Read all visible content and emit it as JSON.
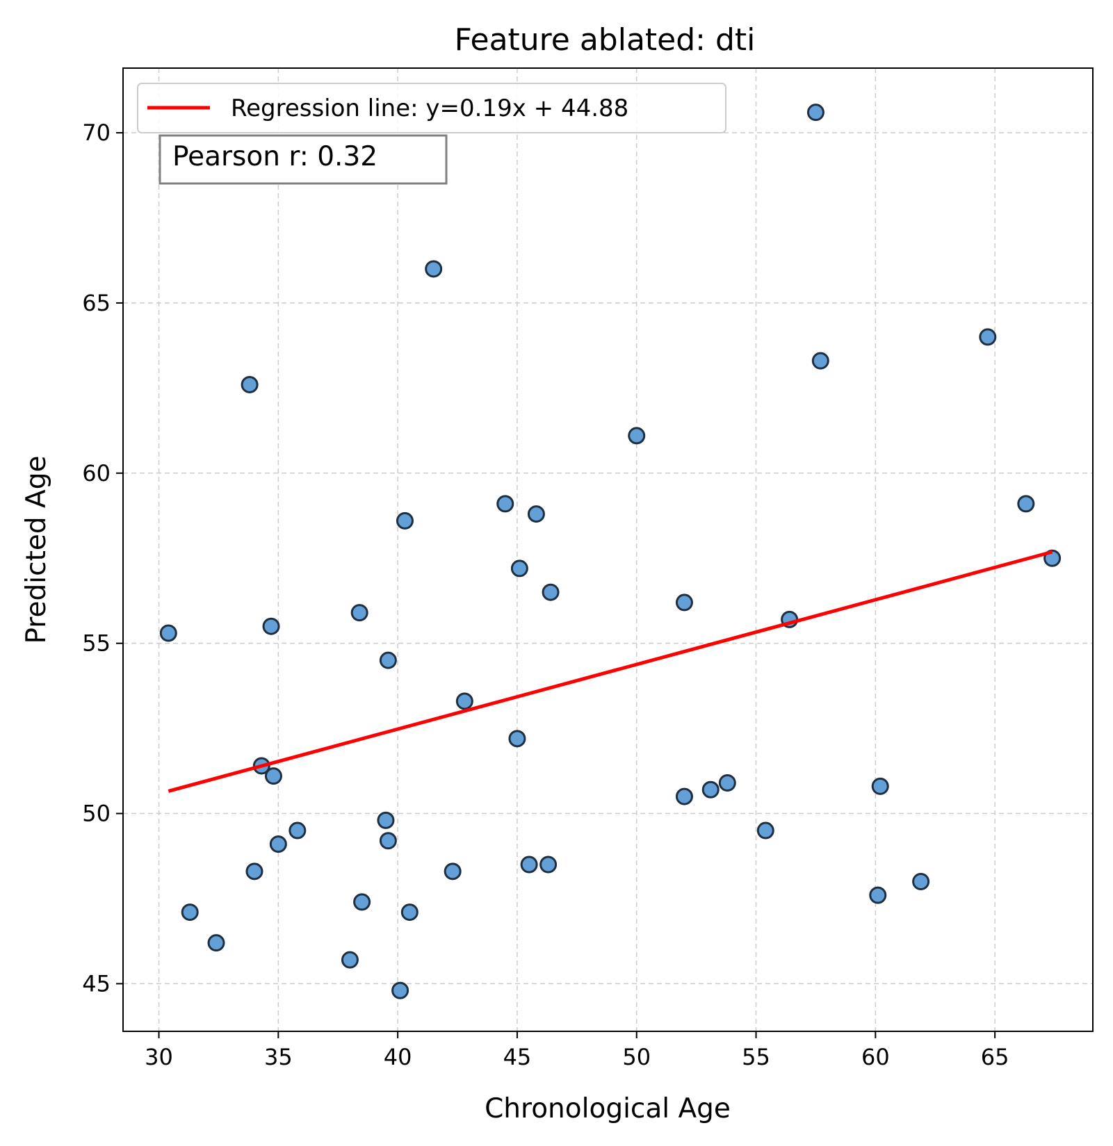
{
  "chart_data": {
    "type": "scatter",
    "title": "Feature ablated: dti",
    "xlabel": "Chronological Age",
    "ylabel": "Predicted Age",
    "xlim": [
      28.5,
      69.1
    ],
    "ylim": [
      43.6,
      71.9
    ],
    "xticks": [
      30,
      35,
      40,
      45,
      50,
      55,
      60,
      65
    ],
    "yticks": [
      45,
      50,
      55,
      60,
      65,
      70
    ],
    "grid": true,
    "grid_style": "dashed",
    "legend_position": "top-left",
    "legend": [
      "Regression line: y=0.19x + 44.88"
    ],
    "annotation": "Pearson r: 0.32",
    "colors": {
      "points": "#5b9bd5",
      "point_edge": "#1f2f3f",
      "regression": "#ff0000",
      "grid": "#cccccc"
    },
    "regression": {
      "slope": 0.19,
      "intercept": 44.88,
      "x_start": 30.4,
      "x_end": 67.4
    },
    "series": [
      {
        "points": [
          [
            30.4,
            55.3
          ],
          [
            31.3,
            47.1
          ],
          [
            32.4,
            46.2
          ],
          [
            33.8,
            62.6
          ],
          [
            34.0,
            48.3
          ],
          [
            34.3,
            51.4
          ],
          [
            34.7,
            55.5
          ],
          [
            34.8,
            51.1
          ],
          [
            35.0,
            49.1
          ],
          [
            35.8,
            49.5
          ],
          [
            38.0,
            45.7
          ],
          [
            38.4,
            55.9
          ],
          [
            38.5,
            47.4
          ],
          [
            39.5,
            49.8
          ],
          [
            39.6,
            54.5
          ],
          [
            39.6,
            49.2
          ],
          [
            40.1,
            44.8
          ],
          [
            40.3,
            58.6
          ],
          [
            40.5,
            47.1
          ],
          [
            41.5,
            66.0
          ],
          [
            42.3,
            48.3
          ],
          [
            42.8,
            53.3
          ],
          [
            44.5,
            59.1
          ],
          [
            45.0,
            52.2
          ],
          [
            45.1,
            57.2
          ],
          [
            45.5,
            48.5
          ],
          [
            45.8,
            58.8
          ],
          [
            46.3,
            48.5
          ],
          [
            46.4,
            56.5
          ],
          [
            50.0,
            61.1
          ],
          [
            52.0,
            56.2
          ],
          [
            52.0,
            50.5
          ],
          [
            53.1,
            50.7
          ],
          [
            53.8,
            50.9
          ],
          [
            55.4,
            49.5
          ],
          [
            56.4,
            55.7
          ],
          [
            57.5,
            70.6
          ],
          [
            57.7,
            63.3
          ],
          [
            60.1,
            47.6
          ],
          [
            60.2,
            50.8
          ],
          [
            61.9,
            48.0
          ],
          [
            64.7,
            64.0
          ],
          [
            66.3,
            59.1
          ],
          [
            67.4,
            57.5
          ]
        ]
      }
    ]
  }
}
